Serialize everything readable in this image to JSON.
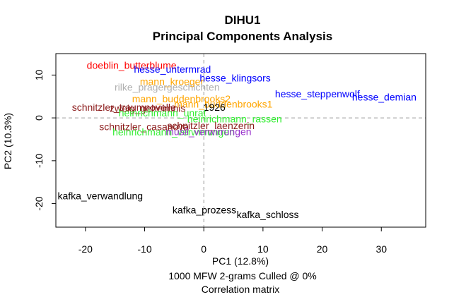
{
  "chart_data": {
    "type": "scatter",
    "title": "DIHU1",
    "subtitle": "Principal Components Analysis",
    "xlabel": "PC1 (12.8%)",
    "ylabel": "PC2 (10.3%)",
    "caption_lines": [
      "1000 MFW 2-grams Culled @ 0%",
      "Correlation matrix"
    ],
    "xlim": [
      -25,
      37.5
    ],
    "ylim": [
      -25.5,
      15
    ],
    "xticks": [
      -20,
      -10,
      0,
      10,
      20,
      30
    ],
    "yticks": [
      -20,
      -10,
      0,
      10
    ],
    "zero_lines": true,
    "points": [
      {
        "label": "doeblin_butterblume",
        "x": -12.2,
        "y": 12.3,
        "color": "#ff0000"
      },
      {
        "label": "hesse_untermrad",
        "x": -5.3,
        "y": 11.4,
        "color": "#0000ff"
      },
      {
        "label": "hesse_klingsors",
        "x": 5.3,
        "y": 9.3,
        "color": "#0000ff"
      },
      {
        "label": "mann_kroeger",
        "x": -5.4,
        "y": 8.5,
        "color": "#ffa500"
      },
      {
        "label": "rilke_pragergeschichten",
        "x": -6.2,
        "y": 7.2,
        "color": "#b0b0b0"
      },
      {
        "label": "hesse_steppenwolf",
        "x": 19.2,
        "y": 5.6,
        "color": "#0000ff"
      },
      {
        "label": "hesse_demian",
        "x": 30.5,
        "y": 4.9,
        "color": "#0000ff"
      },
      {
        "label": "mann_buddenbrooks2",
        "x": -3.8,
        "y": 4.5,
        "color": "#ffa500"
      },
      {
        "label": "mann_buddenbrooks1",
        "x": 3.3,
        "y": 3.2,
        "color": "#ffa500"
      },
      {
        "label": "schnitzler_traumnovelle",
        "x": -13.5,
        "y": 2.5,
        "color": "#8b1a1a"
      },
      {
        "label": "zweig_geheimnis",
        "x": -9.5,
        "y": 2.2,
        "color": "#8b1a1a"
      },
      {
        "label": "1926",
        "x": 1.8,
        "y": 2.5,
        "color": "#000000"
      },
      {
        "label": "heinrichmann_unrat",
        "x": -7.0,
        "y": 1.2,
        "color": "#33ee33"
      },
      {
        "label": "heinrichmann_rassen",
        "x": 5.2,
        "y": -0.2,
        "color": "#33ee33"
      },
      {
        "label": "schnitzler_laenzerin",
        "x": 1.2,
        "y": -1.8,
        "color": "#8b1a1a"
      },
      {
        "label": "schnitzler_casanova",
        "x": -10.1,
        "y": -2.0,
        "color": "#8b1a1a"
      },
      {
        "label": "heinrichmann_verwirrungen",
        "x": -5.1,
        "y": -3.3,
        "color": "#33ee33"
      },
      {
        "label": "musil_verwirrungen",
        "x": 0.8,
        "y": -3.2,
        "color": "#9932cc"
      },
      {
        "label": "kafka_verwandlung",
        "x": -17.5,
        "y": -18.2,
        "color": "#000000"
      },
      {
        "label": "kafka_prozess",
        "x": 0.1,
        "y": -21.5,
        "color": "#000000"
      },
      {
        "label": "kafka_schloss",
        "x": 10.8,
        "y": -22.5,
        "color": "#000000"
      }
    ]
  }
}
